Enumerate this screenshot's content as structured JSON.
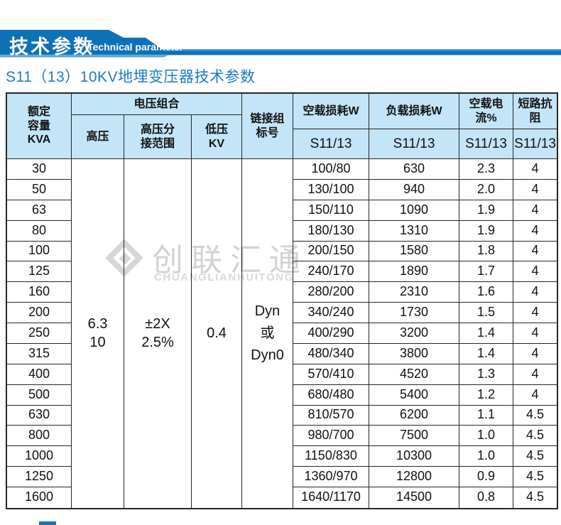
{
  "banner": {
    "title_cn": "技术参数",
    "title_en": "Technical parameter"
  },
  "page_title": "S11（13）10KV地埋变压器技术参数",
  "watermark": {
    "cn": "创联汇通",
    "en": "CHUANGLIANHUITONG"
  },
  "colors": {
    "banner_blue": "#0d71b7",
    "banner_light_blue": "#4c9ed2",
    "header_bg": "#c3e5f7",
    "title_blue": "#1a7cc4",
    "border": "#262626",
    "watermark_gray": "#d2d2d2"
  },
  "table": {
    "header": {
      "rated_capacity": "额定\n容量\nKVA",
      "voltage_combination": "电压组合",
      "high_voltage": "高压",
      "tap_range": "高压分\n接范围",
      "low_voltage": "低压\nKV",
      "vector_group": "链接组\n标号",
      "no_load_loss": "空载损耗W",
      "load_loss": "负载损耗W",
      "no_load_current": "空载电流%",
      "short_circuit_impedance": "短路抗阻",
      "model_no_load_loss": "S11/13",
      "model_load_loss": "S11/13",
      "model_no_load_current": "S11/13",
      "model_impedance": "S11/13"
    },
    "merged_values": {
      "high_voltage": "6.3\n10",
      "tap_range": "±2X\n2.5%",
      "low_voltage": "0.4",
      "vector_group": "Dyn\n或\nDyn0"
    },
    "rows": [
      {
        "kva": "30",
        "no_load_loss": "100/80",
        "load_loss": "630",
        "no_load_current": "2.3",
        "impedance": "4"
      },
      {
        "kva": "50",
        "no_load_loss": "130/100",
        "load_loss": "940",
        "no_load_current": "2.0",
        "impedance": "4"
      },
      {
        "kva": "63",
        "no_load_loss": "150/110",
        "load_loss": "1090",
        "no_load_current": "1.9",
        "impedance": "4"
      },
      {
        "kva": "80",
        "no_load_loss": "180/130",
        "load_loss": "1310",
        "no_load_current": "1.9",
        "impedance": "4"
      },
      {
        "kva": "100",
        "no_load_loss": "200/150",
        "load_loss": "1580",
        "no_load_current": "1.8",
        "impedance": "4"
      },
      {
        "kva": "125",
        "no_load_loss": "240/170",
        "load_loss": "1890",
        "no_load_current": "1.7",
        "impedance": "4"
      },
      {
        "kva": "160",
        "no_load_loss": "280/200",
        "load_loss": "2310",
        "no_load_current": "1.6",
        "impedance": "4"
      },
      {
        "kva": "200",
        "no_load_loss": "340/240",
        "load_loss": "1730",
        "no_load_current": "1.5",
        "impedance": "4"
      },
      {
        "kva": "250",
        "no_load_loss": "400/290",
        "load_loss": "3200",
        "no_load_current": "1.4",
        "impedance": "4"
      },
      {
        "kva": "315",
        "no_load_loss": "480/340",
        "load_loss": "3800",
        "no_load_current": "1.4",
        "impedance": "4"
      },
      {
        "kva": "400",
        "no_load_loss": "570/410",
        "load_loss": "4520",
        "no_load_current": "1.3",
        "impedance": "4"
      },
      {
        "kva": "500",
        "no_load_loss": "680/480",
        "load_loss": "5400",
        "no_load_current": "1.2",
        "impedance": "4"
      },
      {
        "kva": "630",
        "no_load_loss": "810/570",
        "load_loss": "6200",
        "no_load_current": "1.1",
        "impedance": "4.5"
      },
      {
        "kva": "800",
        "no_load_loss": "980/700",
        "load_loss": "7500",
        "no_load_current": "1.0",
        "impedance": "4.5"
      },
      {
        "kva": "1000",
        "no_load_loss": "1150/830",
        "load_loss": "10300",
        "no_load_current": "1.0",
        "impedance": "4.5"
      },
      {
        "kva": "1250",
        "no_load_loss": "1360/970",
        "load_loss": "12800",
        "no_load_current": "0.9",
        "impedance": "4.5"
      },
      {
        "kva": "1600",
        "no_load_loss": "1640/1170",
        "load_loss": "14500",
        "no_load_current": "0.8",
        "impedance": "4.5"
      }
    ]
  }
}
